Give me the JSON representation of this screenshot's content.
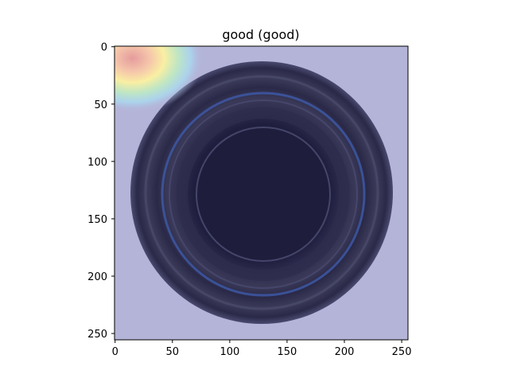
{
  "chart_data": {
    "type": "heatmap",
    "title": "good (good)",
    "xlabel": "",
    "ylabel": "",
    "xlim": [
      0,
      256
    ],
    "ylim": [
      256,
      0
    ],
    "grid": false,
    "x_ticks": [
      0,
      50,
      100,
      150,
      200,
      250
    ],
    "y_ticks": [
      0,
      50,
      100,
      150,
      200,
      250
    ],
    "image": {
      "content": "top-down photo of a circular bottle bottom overlaid with an anomaly heatmap",
      "heatmap_hotspot": {
        "x": 15,
        "y": 10,
        "level": "high"
      },
      "background_colormap_value": "low"
    },
    "colors": {
      "heatmap_low": "#b4b4d8",
      "bottle_dark": "#1e1d3c",
      "hot_red": "#f2a6a6",
      "hot_yellow": "#fdf2a0",
      "hot_cyan": "#a8e8f4"
    }
  }
}
